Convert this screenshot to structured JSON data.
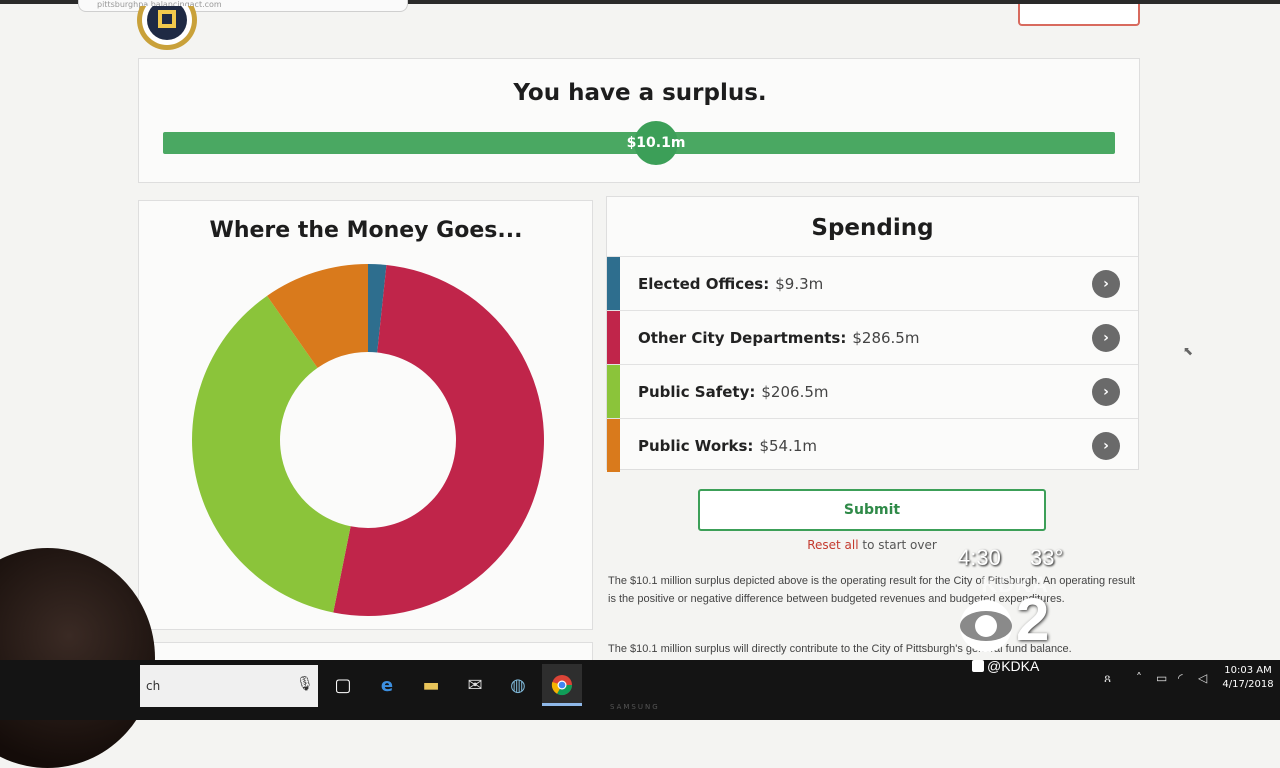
{
  "browser": {
    "url_text": "pittsburghpa.balancingact.com"
  },
  "surplus": {
    "title": "You have a surplus.",
    "value_label": "$10.1m"
  },
  "chart_data": {
    "type": "pie",
    "title": "Where the Money Goes...",
    "categories": [
      "Elected Offices",
      "Other City Departments",
      "Public Safety",
      "Public Works"
    ],
    "values": [
      9.3,
      286.5,
      206.5,
      54.1
    ],
    "colors": [
      "#2e6e8e",
      "#c0254a",
      "#8bc43a",
      "#d97a1c"
    ],
    "donut": true
  },
  "spending": {
    "title": "Spending",
    "items": [
      {
        "label": "Elected Offices:",
        "value": "$9.3m",
        "color": "#2e6e8e"
      },
      {
        "label": "Other City Departments:",
        "value": "$286.5m",
        "color": "#c0254a"
      },
      {
        "label": "Public Safety:",
        "value": "$206.5m",
        "color": "#8bc43a"
      },
      {
        "label": "Public Works:",
        "value": "$54.1m",
        "color": "#d97a1c"
      }
    ],
    "arrow_icon": "chevron-right-icon"
  },
  "actions": {
    "submit_label": "Submit",
    "reset_link": "Reset all",
    "reset_suffix": " to start over"
  },
  "description": {
    "para1": "The $10.1 million surplus depicted above is the operating result for the City of Pittsburgh. An operating result is the positive or negative difference between budgeted revenues and budgeted expenditures.",
    "para2": "The $10.1 million surplus will directly contribute to the City of Pittsburgh's general fund balance."
  },
  "taskbar": {
    "search_text": "ch",
    "clock_time": "10:03 AM",
    "clock_date": "4/17/2018",
    "monitor_brand": "SAMSUNG"
  },
  "overlay": {
    "time": "4:30",
    "temp": "33°",
    "station": "KDKA",
    "channel": "2",
    "handle": "@KDKA"
  }
}
